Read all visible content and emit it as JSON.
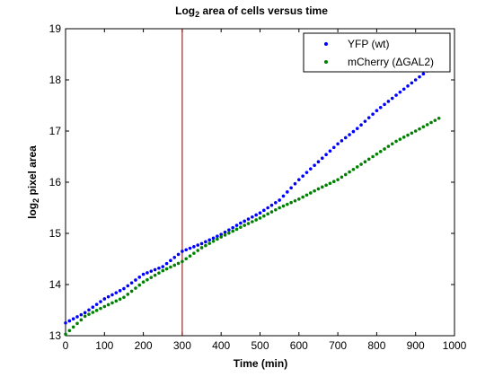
{
  "chart_data": {
    "type": "scatter",
    "title_main": "Log",
    "title_sub": "2",
    "title_rest": " area of cells versus time",
    "xlabel": "Time (min)",
    "ylabel_main": "log",
    "ylabel_sub": "2",
    "ylabel_rest": " pixel area",
    "xlim": [
      0,
      1000
    ],
    "ylim": [
      13,
      19
    ],
    "xticks": [
      0,
      100,
      200,
      300,
      400,
      500,
      600,
      700,
      800,
      900,
      1000
    ],
    "yticks": [
      13,
      14,
      15,
      16,
      17,
      18,
      19
    ],
    "grid": false,
    "legend_position": "top-right",
    "vertical_line": {
      "x": 300,
      "color": "#800000"
    },
    "series": [
      {
        "name": "YFP (wt)",
        "color": "#0000ff",
        "marker": "dot",
        "x": [
          0,
          50,
          100,
          150,
          200,
          250,
          300,
          350,
          400,
          450,
          500,
          550,
          600,
          650,
          700,
          750,
          800,
          850,
          900,
          960
        ],
        "y": [
          13.25,
          13.45,
          13.72,
          13.92,
          14.2,
          14.35,
          14.65,
          14.8,
          14.98,
          15.2,
          15.4,
          15.65,
          16.05,
          16.4,
          16.75,
          17.05,
          17.4,
          17.7,
          18.0,
          18.35
        ]
      },
      {
        "name": "mCherry (ΔGAL2)",
        "color": "#008000",
        "marker": "dot",
        "x": [
          0,
          50,
          100,
          150,
          200,
          250,
          300,
          350,
          400,
          450,
          500,
          550,
          600,
          650,
          700,
          750,
          800,
          850,
          900,
          960
        ],
        "y": [
          13.03,
          13.38,
          13.57,
          13.75,
          14.05,
          14.27,
          14.45,
          14.72,
          14.93,
          15.12,
          15.3,
          15.5,
          15.67,
          15.87,
          16.05,
          16.3,
          16.55,
          16.8,
          17.0,
          17.25
        ]
      }
    ]
  }
}
